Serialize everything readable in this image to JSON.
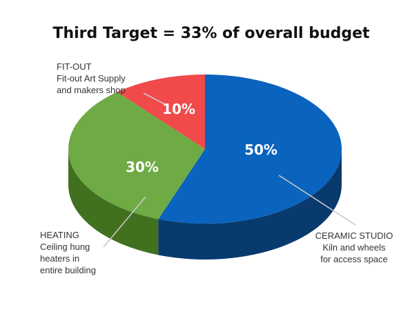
{
  "chart_data": {
    "type": "pie",
    "title": "Third Target = 33% of overall budget",
    "slices": [
      {
        "label_lines": [
          "CERAMIC STUDIO",
          "Kiln and wheels",
          "for access space"
        ],
        "value": 50,
        "value_label": "50%",
        "color": "#0a63bd",
        "side_color": "#083a6e"
      },
      {
        "label_lines": [
          "HEATING",
          "Ceiling hung",
          "heaters in",
          "entire building"
        ],
        "value": 30,
        "value_label": "30%",
        "color": "#6fab44",
        "side_color": "#41701f"
      },
      {
        "label_lines": [
          "FIT-OUT",
          "Fit-out Art Supply",
          "and makers shop"
        ],
        "value": 10,
        "value_label": "10%",
        "color": "#f04a4a",
        "side_color": "#a82a2a"
      }
    ]
  }
}
